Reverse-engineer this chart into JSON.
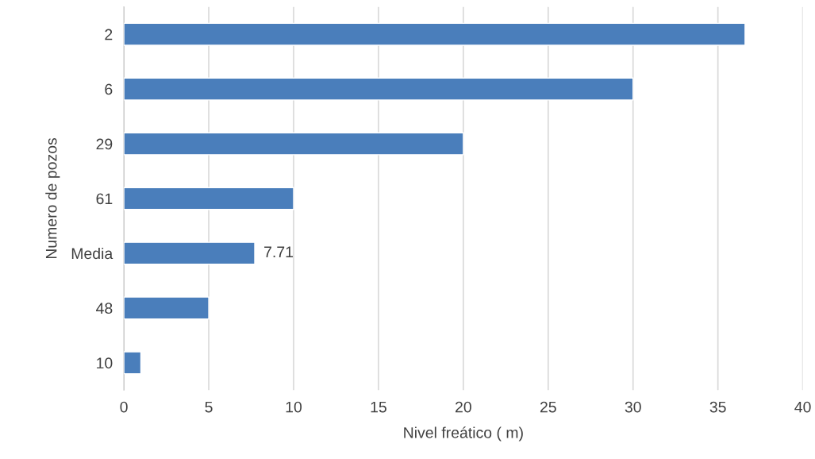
{
  "chart_data": {
    "type": "bar",
    "orientation": "horizontal",
    "categories": [
      "2",
      "6",
      "29",
      "61",
      "Media",
      "48",
      "10"
    ],
    "values": [
      36.6,
      30,
      20,
      10,
      7.71,
      5,
      1
    ],
    "value_labels": [
      null,
      null,
      null,
      null,
      "7.71",
      null,
      null
    ],
    "color": "#4a7ebb",
    "xlim": [
      0,
      40
    ],
    "xticks": [
      0,
      5,
      10,
      15,
      20,
      25,
      30,
      35,
      40
    ],
    "xlabel": "Nivel freático ( m)",
    "ylabel": "Numero de pozos",
    "grid": "x",
    "legend": false
  }
}
